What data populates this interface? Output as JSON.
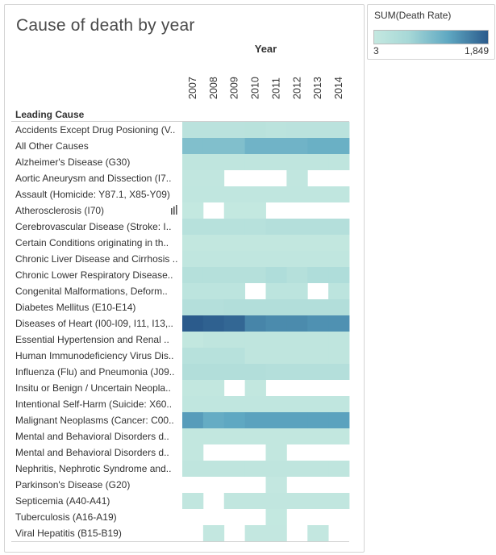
{
  "chart_data": {
    "type": "heatmap",
    "title": "Cause of death by year",
    "column_header": "Year",
    "row_header": "Leading Cause",
    "x": [
      "2007",
      "2008",
      "2009",
      "2010",
      "2011",
      "2012",
      "2013",
      "2014"
    ],
    "y": [
      "Accidents Except Drug Posioning (V..",
      "All Other Causes",
      "Alzheimer's Disease (G30)",
      "Aortic Aneurysm and Dissection (I7..",
      "Assault (Homicide: Y87.1, X85-Y09)",
      "Atherosclerosis (I70)",
      "Cerebrovascular Disease (Stroke: I..",
      "Certain Conditions originating in th..",
      "Chronic Liver Disease and Cirrhosis ..",
      "Chronic Lower Respiratory Disease..",
      "Congenital Malformations, Deform..",
      "Diabetes Mellitus (E10-E14)",
      "Diseases of Heart (I00-I09, I11, I13,..",
      "Essential Hypertension and Renal ..",
      "Human Immunodeficiency Virus Dis..",
      "Influenza (Flu) and Pneumonia (J09..",
      "Insitu or Benign / Uncertain Neopla..",
      "Intentional Self-Harm (Suicide: X60..",
      "Malignant Neoplasms (Cancer: C00..",
      "Mental and Behavioral Disorders d..",
      "Mental and Behavioral Disorders d..",
      "Nephritis, Nephrotic Syndrome and..",
      "Parkinson's Disease (G20)",
      "Septicemia (A40-A41)",
      "Tuberculosis (A16-A19)",
      "Viral Hepatitis (B15-B19)"
    ],
    "values": [
      [
        200,
        200,
        200,
        220,
        180,
        200,
        200,
        200
      ],
      [
        900,
        900,
        900,
        1050,
        1050,
        1050,
        1100,
        1100
      ],
      [
        100,
        100,
        100,
        100,
        100,
        100,
        100,
        100
      ],
      [
        60,
        60,
        null,
        null,
        null,
        60,
        null,
        null
      ],
      [
        80,
        80,
        80,
        80,
        80,
        80,
        80,
        80
      ],
      [
        20,
        null,
        20,
        20,
        null,
        null,
        null,
        null
      ],
      [
        250,
        250,
        250,
        250,
        300,
        300,
        300,
        300
      ],
      [
        50,
        50,
        50,
        50,
        50,
        50,
        50,
        50
      ],
      [
        70,
        70,
        70,
        70,
        70,
        70,
        70,
        70
      ],
      [
        280,
        280,
        280,
        280,
        400,
        280,
        400,
        400
      ],
      [
        150,
        150,
        150,
        null,
        150,
        150,
        null,
        150
      ],
      [
        300,
        300,
        350,
        350,
        350,
        350,
        350,
        350
      ],
      [
        1849,
        1800,
        1750,
        1500,
        1450,
        1450,
        1400,
        1400
      ],
      [
        40,
        100,
        100,
        100,
        100,
        100,
        100,
        100
      ],
      [
        250,
        250,
        250,
        100,
        100,
        100,
        100,
        100
      ],
      [
        350,
        350,
        350,
        350,
        300,
        300,
        300,
        300
      ],
      [
        40,
        40,
        null,
        40,
        null,
        null,
        null,
        null
      ],
      [
        80,
        80,
        80,
        80,
        80,
        80,
        80,
        80
      ],
      [
        1300,
        1150,
        1200,
        1250,
        1250,
        1250,
        1250,
        1250
      ],
      [
        50,
        50,
        50,
        50,
        50,
        50,
        50,
        50
      ],
      [
        40,
        null,
        null,
        null,
        40,
        null,
        null,
        null
      ],
      [
        100,
        100,
        100,
        100,
        100,
        100,
        100,
        100
      ],
      [
        null,
        null,
        null,
        null,
        30,
        null,
        null,
        null
      ],
      [
        60,
        null,
        60,
        60,
        60,
        60,
        60,
        60
      ],
      [
        null,
        null,
        null,
        null,
        20,
        null,
        null,
        null
      ],
      [
        null,
        30,
        null,
        30,
        30,
        null,
        30,
        null
      ]
    ],
    "color_legend": {
      "title": "SUM(Death Rate)",
      "min": 3,
      "max": 1849,
      "min_label": "3",
      "max_label": "1,849"
    },
    "tooltip_icon_label": "Atherosclerosis (I70)"
  }
}
